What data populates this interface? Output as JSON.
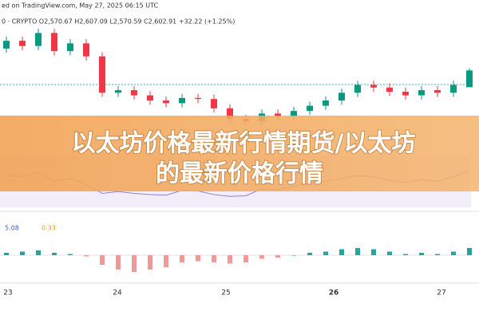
{
  "chart_data": {
    "type": "candlestick",
    "source_line": "ed on TradingView.com, May 27, 2025 06:15 UTC",
    "symbol_line": "0 · CRYPTO  O2,570.67  H2,607.09  L2,570.59  C2,602.91  +32.22 (+1.25%)",
    "title_lines": [
      "以太坊价格最新行情期货/以太坊",
      "的最新价格行情"
    ],
    "macd_labels": [
      "5.08",
      "0.33"
    ],
    "x_labels": [
      "23",
      "24",
      "25",
      "26",
      "27"
    ],
    "up_color": "#089981",
    "down_color": "#f23645",
    "ylim": [
      2470,
      2700
    ],
    "open": [
      2645,
      2660,
      2650,
      2675,
      2640,
      2655,
      2630,
      2560,
      2565,
      2555,
      2545,
      2540,
      2550,
      2548,
      2530,
      2510,
      2505,
      2520,
      2515,
      2525,
      2535,
      2545,
      2560,
      2575,
      2570,
      2562,
      2555,
      2565,
      2560,
      2570.67
    ],
    "high": [
      2668,
      2668,
      2683,
      2683,
      2663,
      2663,
      2638,
      2573,
      2573,
      2563,
      2553,
      2558,
      2558,
      2556,
      2538,
      2518,
      2528,
      2528,
      2533,
      2543,
      2553,
      2568,
      2583,
      2583,
      2578,
      2570,
      2573,
      2573,
      2583,
      2607.09
    ],
    "low": [
      2637,
      2642,
      2642,
      2632,
      2632,
      2622,
      2552,
      2552,
      2547,
      2537,
      2532,
      2532,
      2540,
      2522,
      2502,
      2497,
      2497,
      2507,
      2507,
      2517,
      2527,
      2537,
      2552,
      2562,
      2554,
      2547,
      2547,
      2552,
      2552,
      2570.59
    ],
    "close": [
      2660,
      2650,
      2675,
      2640,
      2655,
      2630,
      2560,
      2565,
      2555,
      2545,
      2540,
      2550,
      2548,
      2530,
      2510,
      2505,
      2520,
      2515,
      2525,
      2535,
      2545,
      2560,
      2575,
      2570,
      2562,
      2555,
      2565,
      2560,
      2575,
      2602.91
    ],
    "rsi": {
      "color": "#9c7cc9",
      "ylim": [
        0,
        100
      ],
      "values": [
        60,
        58,
        65,
        50,
        55,
        45,
        30,
        33,
        30,
        28,
        27,
        35,
        34,
        28,
        25,
        26,
        38,
        36,
        42,
        47,
        50,
        55,
        60,
        57,
        52,
        48,
        53,
        50,
        58,
        68
      ]
    },
    "macd_hist": {
      "ylim": [
        -20,
        20
      ],
      "values": [
        2,
        3,
        4,
        2,
        1,
        -1,
        -8,
        -12,
        -14,
        -12,
        -10,
        -6,
        -5,
        -6,
        -7,
        -6,
        -3,
        -2,
        0,
        2,
        3,
        5,
        6,
        5,
        3,
        1,
        2,
        1,
        3,
        6
      ]
    }
  }
}
